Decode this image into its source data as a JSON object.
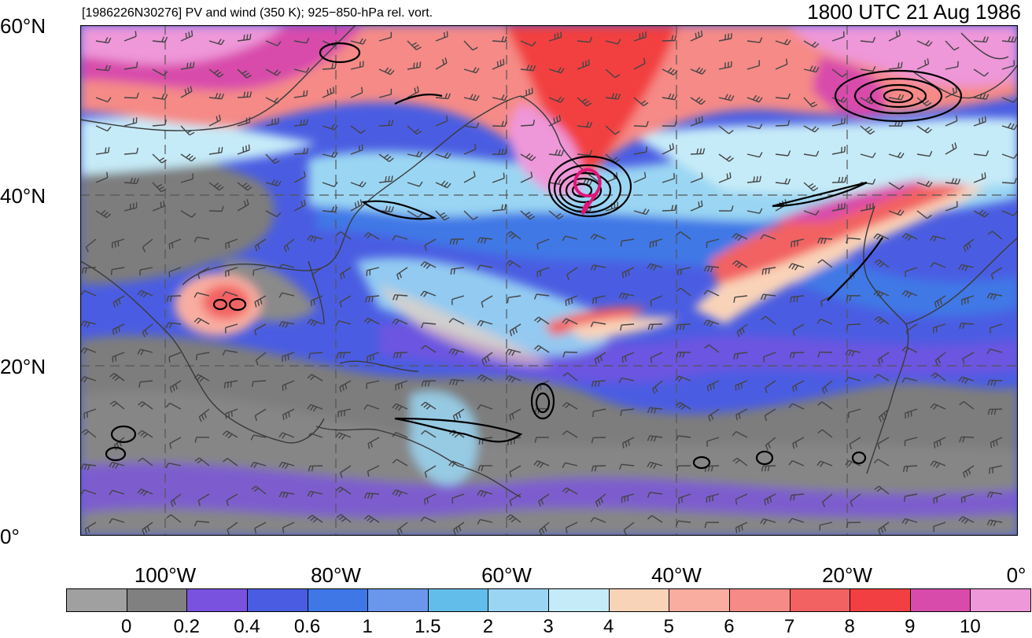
{
  "title": {
    "left": "[1986226N30276] PV and wind (350 K); 925−850-hPa rel. vort.",
    "right": "1800 UTC 21 Aug 1986"
  },
  "map": {
    "lat_labels": [
      "60°N",
      "40°N",
      "20°N",
      "0°"
    ],
    "lon_labels": [
      "100°W",
      "80°W",
      "60°W",
      "40°W",
      "20°W",
      "0°"
    ],
    "lat_range": [
      0,
      60
    ],
    "lon_range": [
      -110,
      0
    ]
  },
  "colorbar": {
    "colors": [
      "#a0a0a0",
      "#808080",
      "#7a52e0",
      "#4a5de2",
      "#3f78e6",
      "#6a96ec",
      "#63bdea",
      "#9ad6f3",
      "#c6ebf8",
      "#f9d3b8",
      "#f8ada0",
      "#f58a86",
      "#f26262",
      "#f23f41",
      "#d84bab",
      "#ee97d9"
    ],
    "labels": [
      "0",
      "0.2",
      "0.4",
      "0.6",
      "1",
      "1.5",
      "2",
      "3",
      "4",
      "5",
      "6",
      "7",
      "8",
      "9",
      "10"
    ]
  },
  "chart_data": {
    "type": "heatmap",
    "title": "[1986226N30276] PV and wind (350 K); 925−850-hPa rel. vort.",
    "subtitle": "1800 UTC 21 Aug 1986",
    "xlabel": "",
    "ylabel": "",
    "x_ticks": [
      "100°W",
      "80°W",
      "60°W",
      "40°W",
      "20°W",
      "0°"
    ],
    "y_ticks": [
      "60°N",
      "40°N",
      "20°N",
      "0°"
    ],
    "xlim": [
      -110,
      0
    ],
    "ylim": [
      0,
      60
    ],
    "grid": true,
    "legend": "colorbar bottom",
    "levels": [
      0,
      0.2,
      0.4,
      0.6,
      1,
      1.5,
      2,
      3,
      4,
      5,
      6,
      7,
      8,
      9,
      10
    ],
    "features": [
      {
        "label": "storm track marker",
        "lon": -49.5,
        "lat": 41.5
      },
      {
        "label": "vorticity maximum",
        "lon": -52,
        "lat": 41
      },
      {
        "label": "vorticity maximum",
        "lon": -16,
        "lat": 52
      },
      {
        "label": "vorticity maximum",
        "lon": -91,
        "lat": 27
      },
      {
        "label": "vorticity maximum",
        "lon": -56,
        "lat": 15
      }
    ]
  }
}
